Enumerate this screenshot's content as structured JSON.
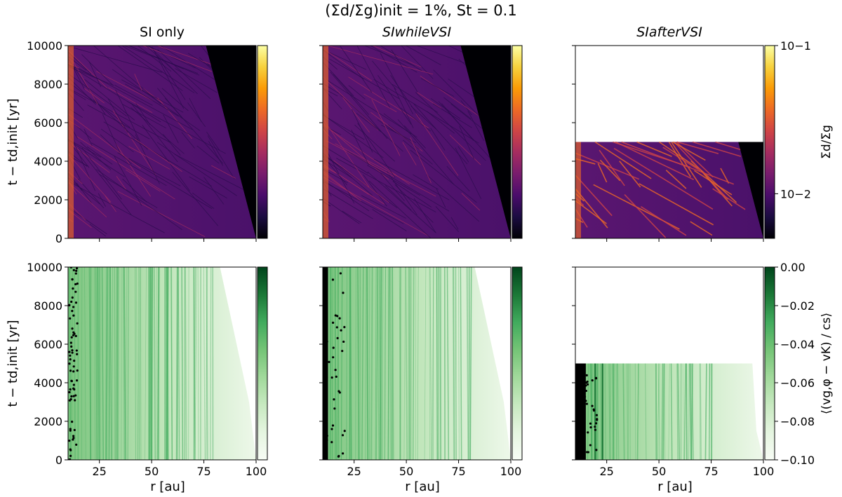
{
  "figure": {
    "title": "(Σd/Σg)init = 1%, St = 0.1"
  },
  "colors": {
    "inferno": [
      "#000004",
      "#1b0c41",
      "#4a0c6b",
      "#781c6d",
      "#a52c60",
      "#cf4446",
      "#ed6925",
      "#fb9b06",
      "#f7d13d",
      "#fcffa4"
    ],
    "greens": [
      "#00441b",
      "#1b7837",
      "#41ab5d",
      "#74c476",
      "#a1d99b",
      "#c7e9c0",
      "#e5f5e0",
      "#f7fcf5"
    ],
    "particle": "#000000"
  },
  "chart_data": [
    {
      "type": "heatmap",
      "id": "density-si-only",
      "panel_title": "SI only",
      "row": 0,
      "col": 0,
      "x_range": [
        10,
        100
      ],
      "y_range": [
        0,
        10000
      ],
      "yticks": [
        "0",
        "2000",
        "4000",
        "6000",
        "8000",
        "10000"
      ],
      "ylabel": "t − td,init [yr]",
      "xlabel": "",
      "sim_end": 10000,
      "cmap": "inferno"
    },
    {
      "type": "heatmap",
      "id": "density-si-while-vsi",
      "panel_title": "SIwhileVSI",
      "row": 0,
      "col": 1,
      "x_range": [
        10,
        100
      ],
      "y_range": [
        0,
        10000
      ],
      "yticks": [],
      "ylabel": "",
      "xlabel": "",
      "sim_end": 10000,
      "cmap": "inferno"
    },
    {
      "type": "heatmap",
      "id": "density-si-after-vsi",
      "panel_title": "SIafterVSI",
      "row": 0,
      "col": 2,
      "x_range": [
        10,
        100
      ],
      "y_range": [
        0,
        10000
      ],
      "yticks": [],
      "ylabel": "",
      "xlabel": "",
      "sim_end": 5000,
      "cmap": "inferno",
      "colorbar": {
        "label": "Σd/Σg",
        "scale": "log",
        "range": [
          0.005,
          0.1
        ],
        "tick_labels": [
          "10−1",
          "10−2"
        ],
        "tick_values": [
          0.1,
          0.01
        ]
      }
    },
    {
      "type": "heatmap",
      "id": "velocity-si-only",
      "row": 1,
      "col": 0,
      "x_range": [
        10,
        100
      ],
      "y_range": [
        0,
        10000
      ],
      "xticks": [
        "25",
        "50",
        "75",
        "100"
      ],
      "yticks": [
        "0",
        "2000",
        "4000",
        "6000",
        "8000",
        "10000"
      ],
      "ylabel": "t − td,init [yr]",
      "xlabel": "r [au]",
      "sim_end": 10000,
      "cmap": "greens"
    },
    {
      "type": "heatmap",
      "id": "velocity-si-while-vsi",
      "row": 1,
      "col": 1,
      "x_range": [
        10,
        100
      ],
      "y_range": [
        0,
        10000
      ],
      "xticks": [
        "25",
        "50",
        "75",
        "100"
      ],
      "yticks": [],
      "ylabel": "",
      "xlabel": "r [au]",
      "sim_end": 10000,
      "cmap": "greens"
    },
    {
      "type": "heatmap",
      "id": "velocity-si-after-vsi",
      "row": 1,
      "col": 2,
      "x_range": [
        10,
        100
      ],
      "y_range": [
        0,
        10000
      ],
      "xticks": [
        "25",
        "50",
        "75",
        "100"
      ],
      "yticks": [],
      "ylabel": "",
      "xlabel": "r [au]",
      "sim_end": 5000,
      "cmap": "greens",
      "colorbar": {
        "label": "⟨(vg,φ − vK) / cs⟩",
        "scale": "linear",
        "range": [
          -0.1,
          0.0
        ],
        "tick_labels": [
          "0.00",
          "−0.02",
          "−0.04",
          "−0.06",
          "−0.08",
          "−0.10"
        ],
        "tick_values": [
          0.0,
          -0.02,
          -0.04,
          -0.06,
          -0.08,
          -0.1
        ]
      }
    }
  ]
}
